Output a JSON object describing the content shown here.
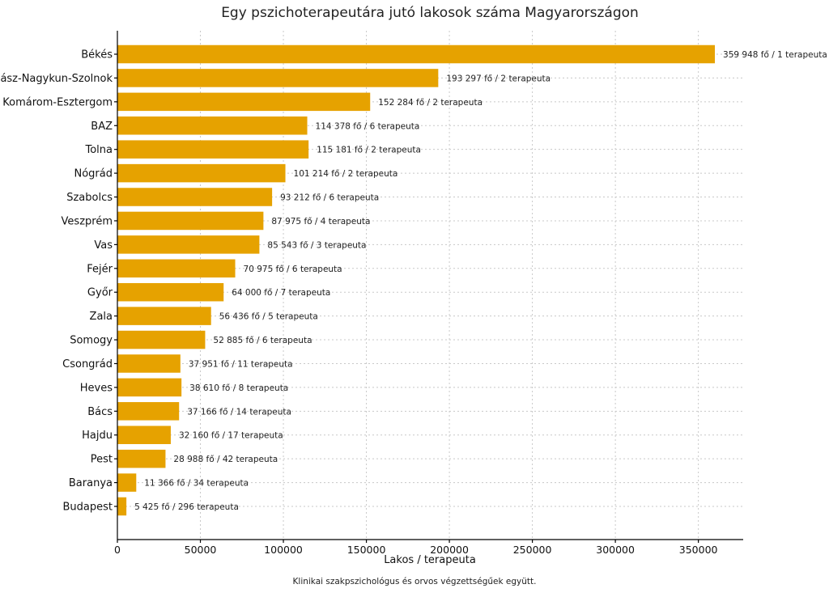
{
  "chart_data": {
    "type": "bar",
    "orientation": "horizontal",
    "title": "Egy pszichoterapeutára jutó lakosok száma Magyarországon",
    "xlabel": "Lakos / terapeuta",
    "ylabel": "",
    "xlim": [
      0,
      377000
    ],
    "xticks": [
      0,
      50000,
      100000,
      150000,
      200000,
      250000,
      300000,
      350000
    ],
    "grid": true,
    "bar_color": "#E6A200",
    "categories": [
      "Békés",
      "Jász-Nagykun-Szolnok",
      "Komárom-Esztergom",
      "BAZ",
      "Tolna",
      "Nógrád",
      "Szabolcs",
      "Veszprém",
      "Vas",
      "Fejér",
      "Győr",
      "Zala",
      "Somogy",
      "Csongrád",
      "Heves",
      "Bács",
      "Hajdu",
      "Pest",
      "Baranya",
      "Budapest"
    ],
    "values": [
      359948,
      193297,
      152284,
      114378,
      115181,
      101214,
      93212,
      87975,
      85543,
      70975,
      64000,
      56436,
      52885,
      37951,
      38610,
      37166,
      32160,
      28988,
      11366,
      5425
    ],
    "labels": [
      "359 948 fő / 1 terapeuta",
      "193 297 fő / 2 terapeuta",
      "152 284 fő / 2 terapeuta",
      "114 378 fő / 6 terapeuta",
      "115 181 fő / 2 terapeuta",
      "101 214 fő / 2 terapeuta",
      "93 212 fő / 6 terapeuta",
      "87 975 fő / 4 terapeuta",
      "85 543 fő / 3 terapeuta",
      "70 975 fő / 6 terapeuta",
      "64 000 fő / 7 terapeuta",
      "56 436 fő / 5 terapeuta",
      "52 885 fő / 6 terapeuta",
      "37 951 fő / 11 terapeuta",
      "38 610 fő / 8 terapeuta",
      "37 166 fő / 14 terapeuta",
      "32 160 fő / 17 terapeuta",
      "28 988 fő / 42 terapeuta",
      "11 366 fő / 34 terapeuta",
      "5 425 fő / 296 terapeuta"
    ]
  },
  "footnote": "Klinikai szakpszichológus és orvos végzettségűek együtt."
}
